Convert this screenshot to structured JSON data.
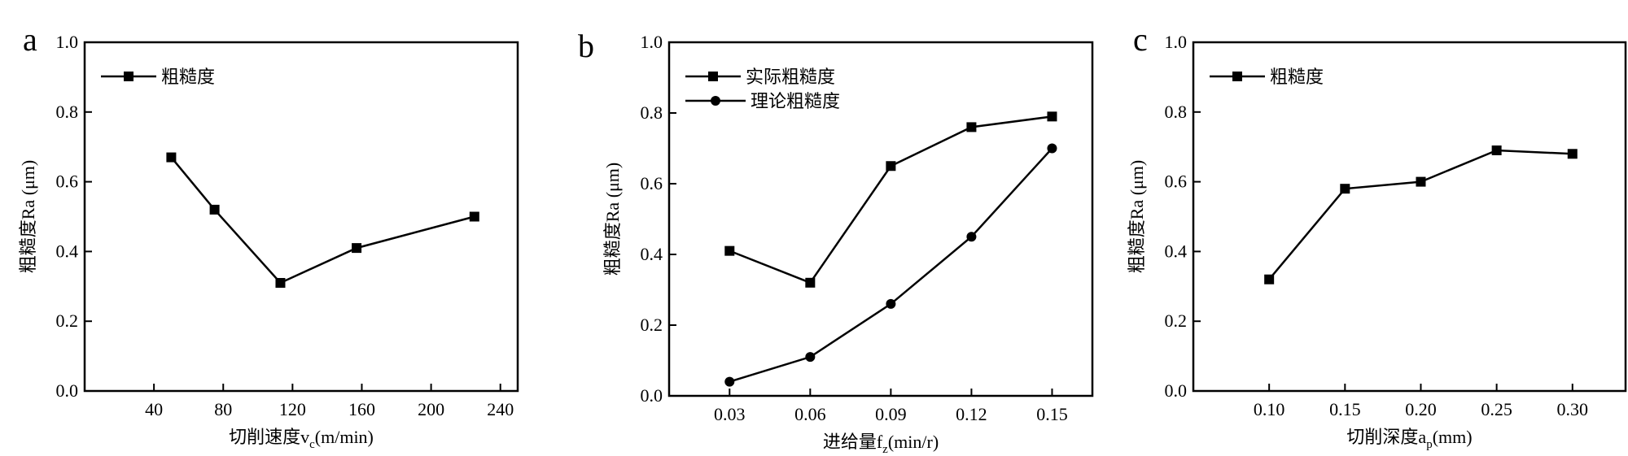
{
  "chart_data": [
    {
      "type": "line",
      "panel_label": "a",
      "title": "",
      "xlabel": "切削速度v",
      "xlabel_sub": "c",
      "xlabel_suffix": "(m/min)",
      "ylabel": "粗糙度Ra (μm)",
      "xlim": [
        0,
        250
      ],
      "ylim": [
        0.0,
        1.0
      ],
      "xticks": [
        40,
        80,
        120,
        160,
        200,
        240
      ],
      "xtick_labels": [
        "40",
        "80",
        "120",
        "160",
        "200",
        "240"
      ],
      "yticks": [
        0.0,
        0.2,
        0.4,
        0.6,
        0.8,
        1.0
      ],
      "ytick_labels": [
        "0.0",
        "0.2",
        "0.4",
        "0.6",
        "0.8",
        "1.0"
      ],
      "legend_position": "top-left",
      "grid": false,
      "series": [
        {
          "name": "粗糙度",
          "marker": "square",
          "x": [
            50,
            75,
            113,
            157,
            225
          ],
          "y": [
            0.67,
            0.52,
            0.31,
            0.41,
            0.5
          ]
        }
      ]
    },
    {
      "type": "line",
      "panel_label": "b",
      "title": "",
      "xlabel": "进给量f",
      "xlabel_sub": "z",
      "xlabel_suffix": "(min/r)",
      "ylabel": "粗糙度Ra (μm)",
      "xlim": [
        0.03,
        0.15
      ],
      "ylim": [
        0.0,
        1.0
      ],
      "xticks": [
        0.03,
        0.06,
        0.09,
        0.12,
        0.15
      ],
      "xtick_labels": [
        "0.03",
        "0.06",
        "0.09",
        "0.12",
        "0.15"
      ],
      "yticks": [
        0.0,
        0.2,
        0.4,
        0.6,
        0.8,
        1.0
      ],
      "ytick_labels": [
        "0.0",
        "0.2",
        "0.4",
        "0.6",
        "0.8",
        "1.0"
      ],
      "legend_position": "top-left",
      "grid": false,
      "series": [
        {
          "name": "实际粗糙度",
          "marker": "square",
          "x": [
            0.03,
            0.06,
            0.09,
            0.12,
            0.15
          ],
          "y": [
            0.41,
            0.32,
            0.65,
            0.76,
            0.79
          ]
        },
        {
          "name": "理论粗糙度",
          "marker": "circle",
          "x": [
            0.03,
            0.06,
            0.09,
            0.12,
            0.15
          ],
          "y": [
            0.04,
            0.11,
            0.26,
            0.45,
            0.7
          ]
        }
      ]
    },
    {
      "type": "line",
      "panel_label": "c",
      "title": "",
      "xlabel": "切削深度a",
      "xlabel_sub": "p",
      "xlabel_suffix": "(mm)",
      "ylabel": "粗糙度Ra (μm)",
      "xlim": [
        0.1,
        0.3
      ],
      "ylim": [
        0.0,
        1.0
      ],
      "xticks": [
        0.1,
        0.15,
        0.2,
        0.25,
        0.3
      ],
      "xtick_labels": [
        "0.10",
        "0.15",
        "0.20",
        "0.25",
        "0.30"
      ],
      "yticks": [
        0.0,
        0.2,
        0.4,
        0.6,
        0.8,
        1.0
      ],
      "ytick_labels": [
        "0.0",
        "0.2",
        "0.4",
        "0.6",
        "0.8",
        "1.0"
      ],
      "legend_position": "top-left",
      "grid": false,
      "series": [
        {
          "name": "粗糙度",
          "marker": "square",
          "x": [
            0.1,
            0.15,
            0.2,
            0.25,
            0.3
          ],
          "y": [
            0.32,
            0.58,
            0.6,
            0.69,
            0.68
          ]
        }
      ]
    }
  ]
}
